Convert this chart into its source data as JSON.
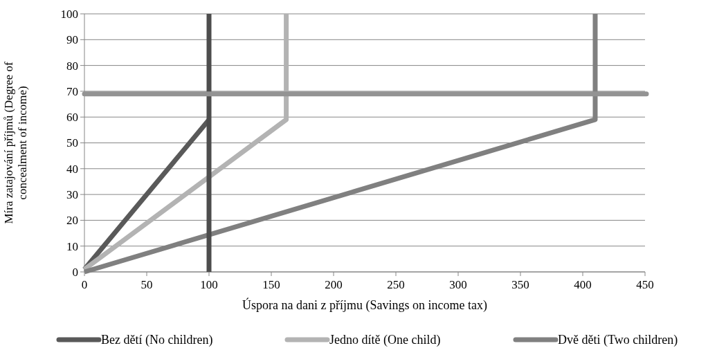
{
  "chart_data": {
    "type": "line",
    "xlabel": "Úspora na dani z příjmu (Savings on income tax)",
    "ylabel": "Míra zatajování příjmů (Degree of concealment of income)",
    "xlim": [
      0,
      450
    ],
    "xticks": [
      0,
      50,
      100,
      150,
      200,
      250,
      300,
      350,
      400,
      450
    ],
    "ylim": [
      0,
      100
    ],
    "yticks": [
      0,
      10,
      20,
      30,
      40,
      50,
      60,
      70,
      80,
      90,
      100
    ],
    "grid": "y",
    "legend": "bottom",
    "line_style": "solid",
    "series": [
      {
        "name": "Bez dětí (No children)",
        "color": "#595959",
        "x": [
          0,
          100
        ],
        "values": [
          1,
          59
        ]
      },
      {
        "name": "Jedno dítě (One child)",
        "color": "#b3b3b3",
        "x": [
          0,
          162,
          162
        ],
        "values": [
          1,
          59,
          100
        ]
      },
      {
        "name": "Dvě děti (Two children)",
        "color": "#808080",
        "x": [
          0,
          410,
          410
        ],
        "values": [
          0,
          59,
          100
        ]
      }
    ],
    "ref_lines": [
      {
        "axis": "x",
        "value": 100,
        "color": "#4d4d4d"
      },
      {
        "axis": "y",
        "value": 69,
        "color": "#939393"
      }
    ]
  }
}
